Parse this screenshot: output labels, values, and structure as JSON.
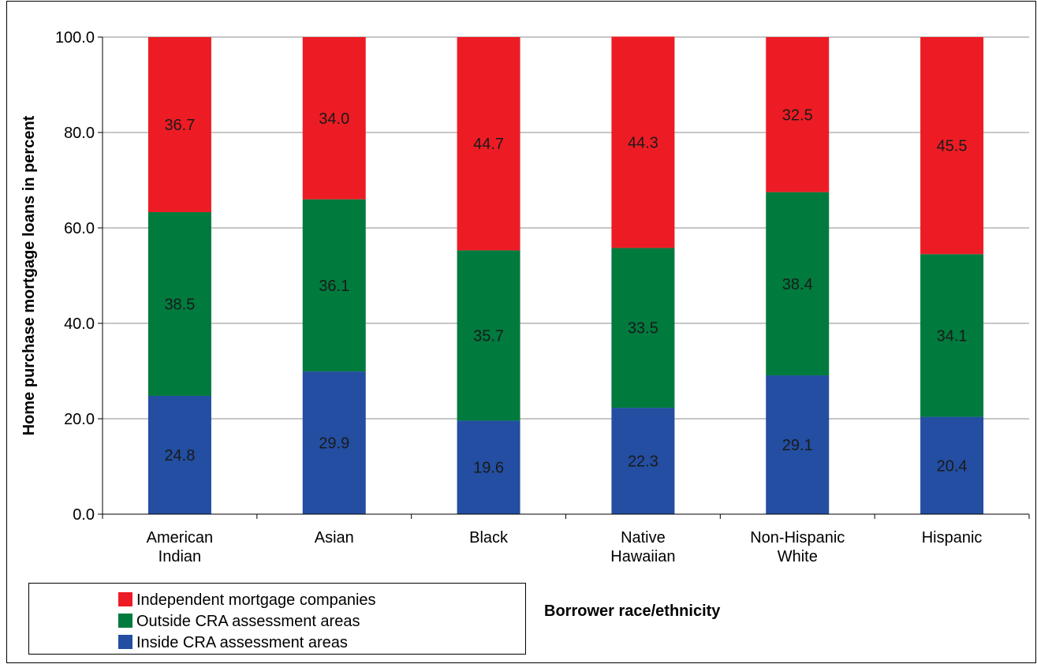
{
  "chart_data": {
    "type": "bar",
    "stacked": true,
    "title": "",
    "xlabel": "Borrower race/ethnicity",
    "ylabel": "Home purchase mortgage loans in percent",
    "ylim": [
      0,
      100
    ],
    "yticks": [
      "0.0",
      "20.0",
      "40.0",
      "60.0",
      "80.0",
      "100.0"
    ],
    "grid": true,
    "legend_position": "bottom-left",
    "categories": [
      [
        "American",
        "Indian"
      ],
      [
        "Asian"
      ],
      [
        "Black"
      ],
      [
        "Native",
        "Hawaiian"
      ],
      [
        "Non-Hispanic",
        "White"
      ],
      [
        "Hispanic"
      ]
    ],
    "series": [
      {
        "name": "Inside CRA assessment areas",
        "color": "#234ea1",
        "values": [
          24.8,
          29.9,
          19.6,
          22.3,
          29.1,
          20.4
        ]
      },
      {
        "name": "Outside CRA assessment areas",
        "color": "#007a3d",
        "values": [
          38.5,
          36.1,
          35.7,
          33.5,
          38.4,
          34.1
        ]
      },
      {
        "name": "Independent mortgage companies",
        "color": "#ed1c24",
        "values": [
          36.7,
          34.0,
          44.7,
          44.3,
          32.5,
          45.5
        ]
      }
    ],
    "legend_order": [
      2,
      1,
      0
    ]
  }
}
